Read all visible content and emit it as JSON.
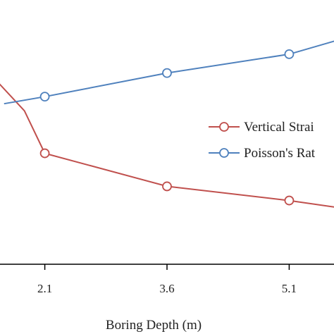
{
  "chart_data": {
    "type": "line",
    "xlabel": "Boring Depth (m)",
    "ylabel": "",
    "x_ticks": [
      "2.1",
      "3.6",
      "5.1"
    ],
    "xlim": [
      1.55,
      5.65
    ],
    "ylim": [
      0,
      1
    ],
    "grid": false,
    "legend_position": "right",
    "series": [
      {
        "name": "Vertical Strai",
        "color": "#c0504d",
        "x": [
          1.5,
          1.85,
          2.1,
          3.6,
          5.1,
          5.7
        ],
        "y": [
          0.78,
          0.65,
          0.47,
          0.33,
          0.27,
          0.24
        ]
      },
      {
        "name": "Poisson's Rat",
        "color": "#4f81bd",
        "x": [
          1.6,
          2.1,
          3.6,
          5.1,
          5.7
        ],
        "y": [
          0.68,
          0.71,
          0.81,
          0.89,
          0.95
        ]
      }
    ]
  }
}
